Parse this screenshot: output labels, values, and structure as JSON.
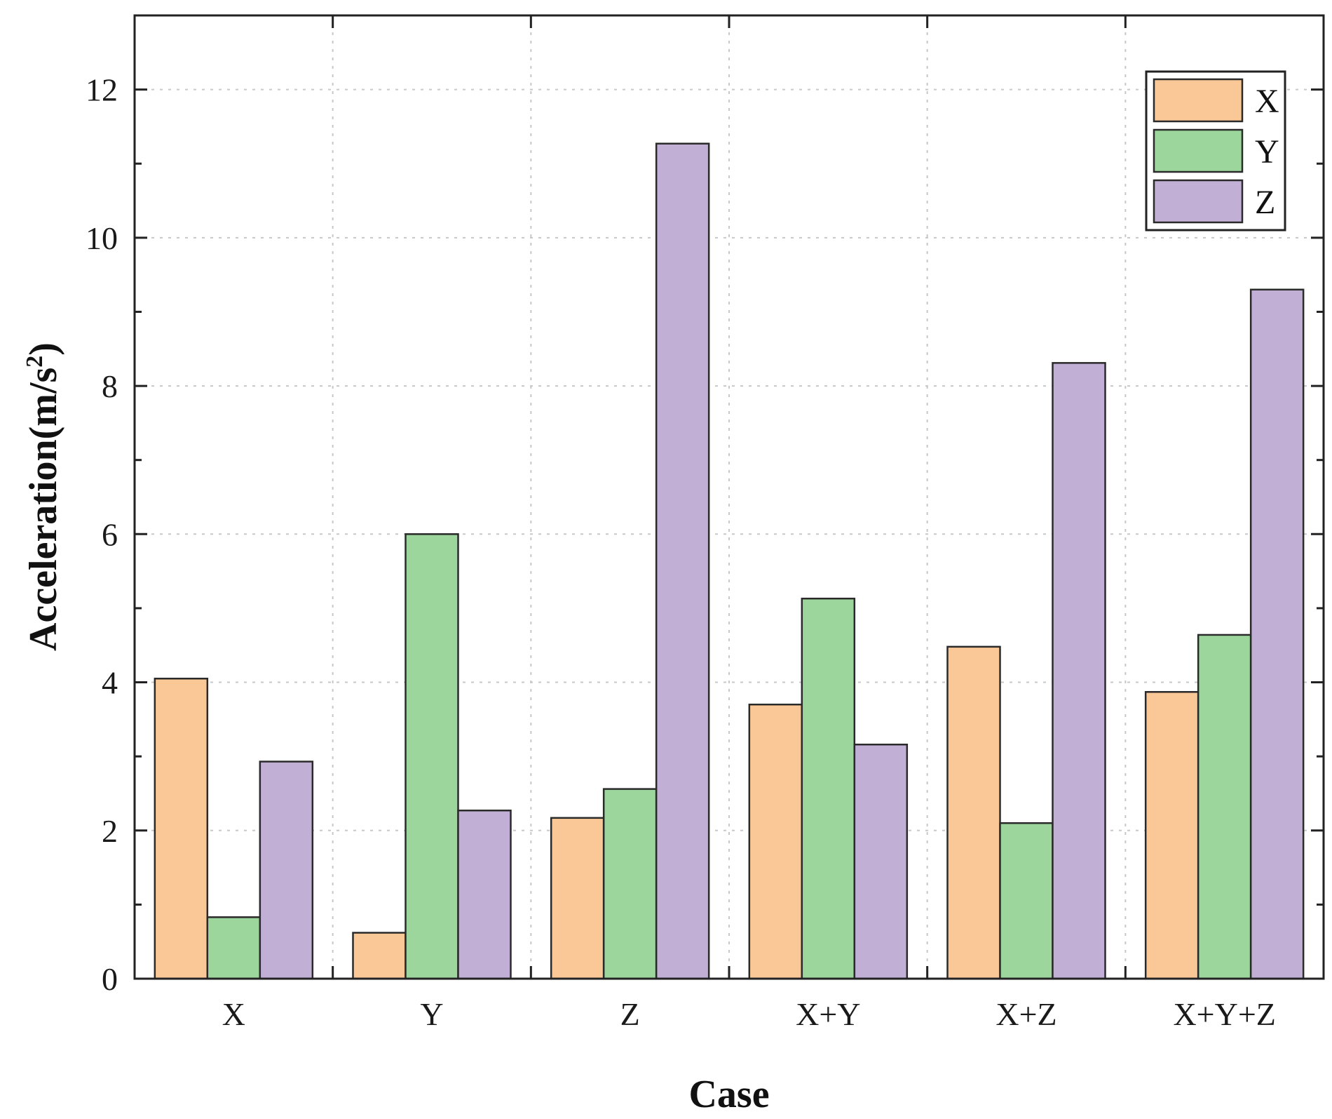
{
  "chart_data": {
    "type": "bar",
    "title": "",
    "xlabel": "Case",
    "ylabel": "Acceleration(m/s²)",
    "ylabel_main": "Acceleration(m/s",
    "ylabel_sup": "2",
    "ylabel_end": ")",
    "ylim": [
      0,
      13
    ],
    "yticks": [
      0,
      2,
      4,
      6,
      8,
      10,
      12
    ],
    "ytick_labels": [
      "0",
      "2",
      "4",
      "6",
      "8",
      "10",
      "12"
    ],
    "categories": [
      "X",
      "Y",
      "Z",
      "X+Y",
      "X+Z",
      "X+Y+Z"
    ],
    "grid": true,
    "legend_position": "top-right",
    "series": [
      {
        "name": "X",
        "color": "#f9c896",
        "values": [
          4.05,
          0.62,
          2.17,
          3.7,
          4.48,
          3.87
        ]
      },
      {
        "name": "Y",
        "color": "#9dd69d",
        "values": [
          0.83,
          6.0,
          2.56,
          5.13,
          2.1,
          4.64
        ]
      },
      {
        "name": "Z",
        "color": "#c1afd6",
        "values": [
          2.93,
          2.27,
          11.27,
          3.16,
          8.31,
          9.3
        ]
      }
    ]
  }
}
